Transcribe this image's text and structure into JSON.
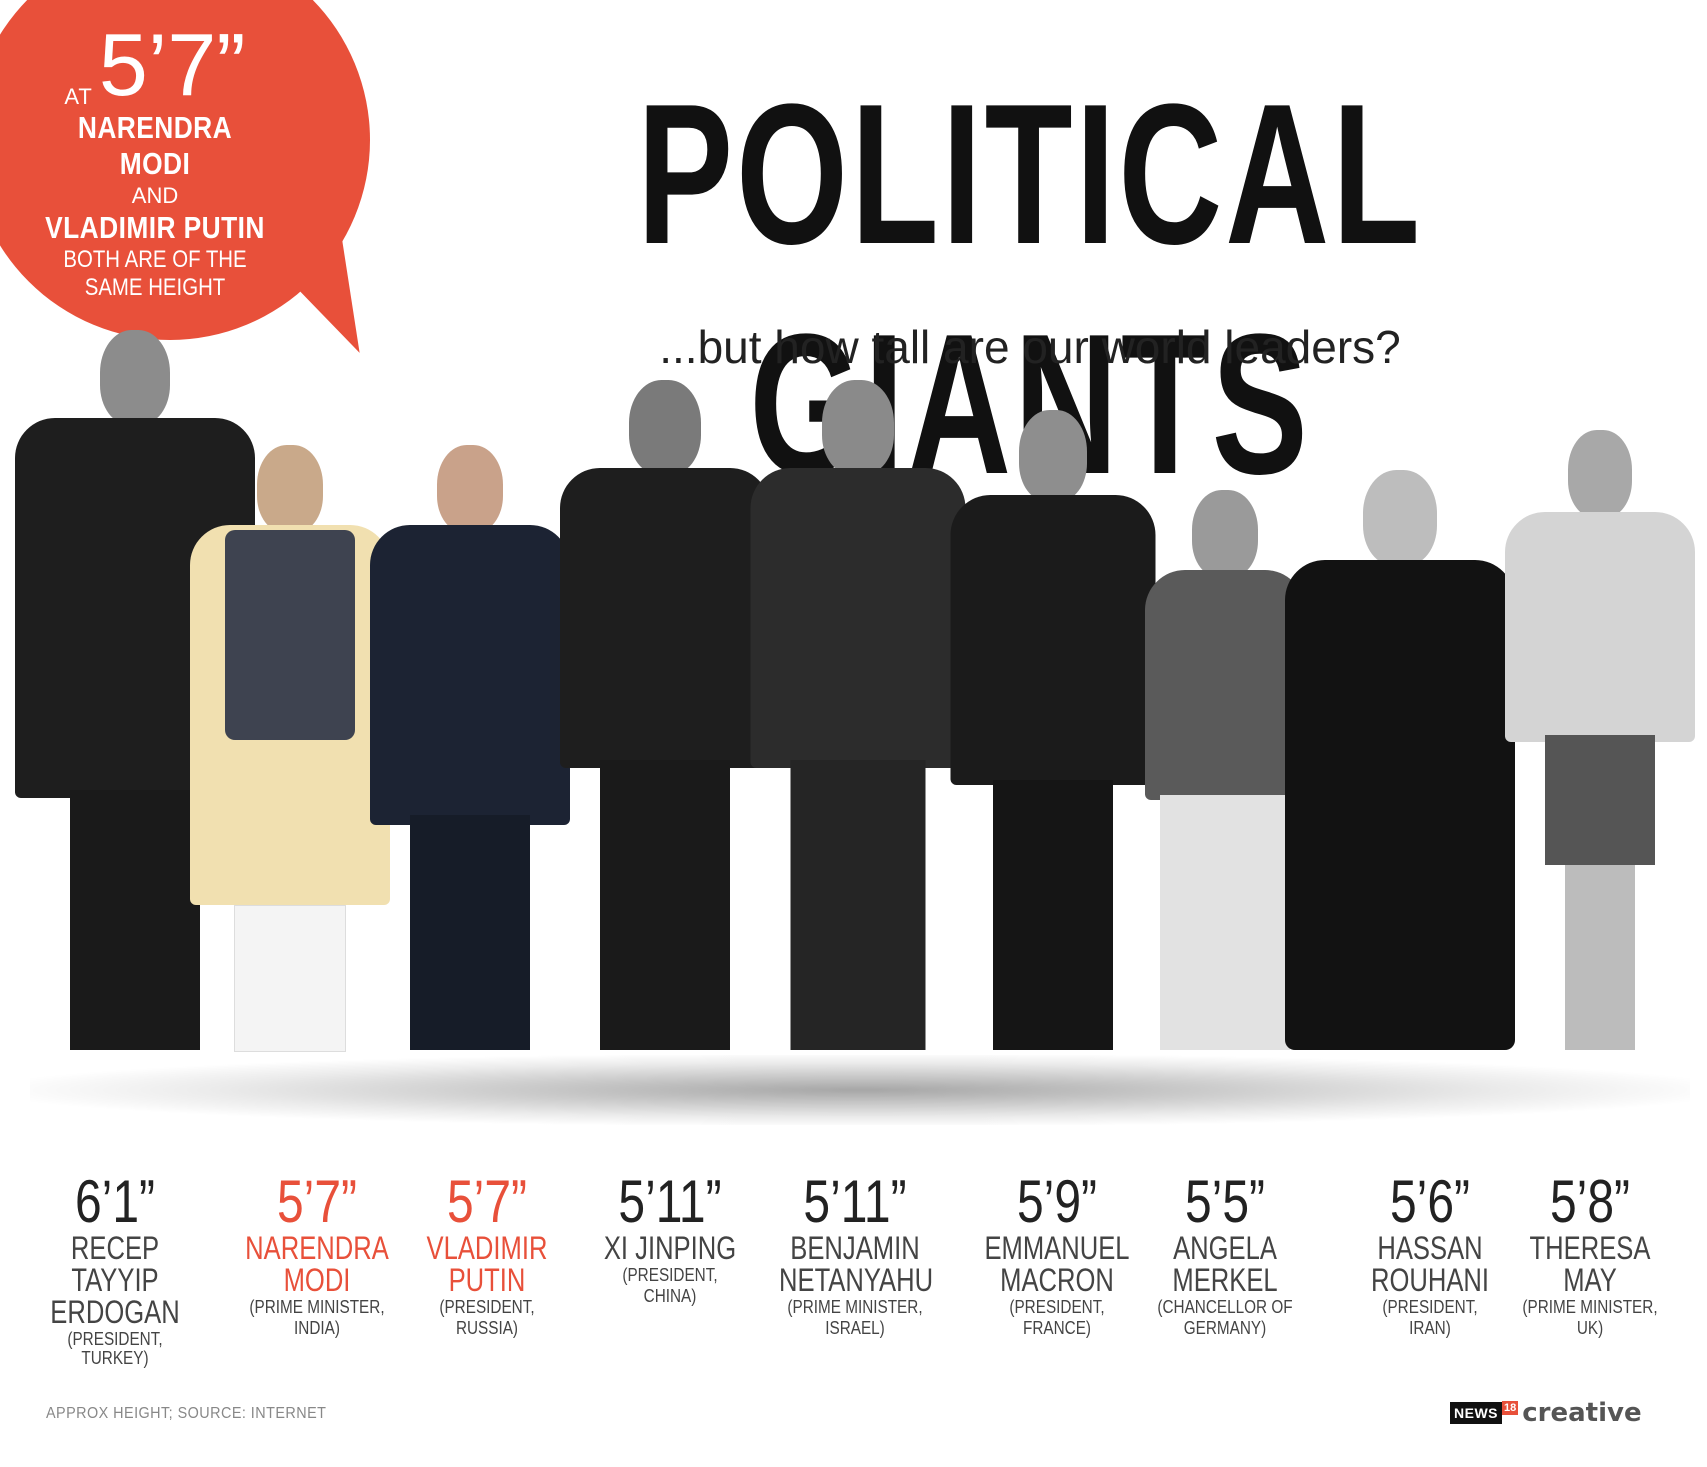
{
  "callout": {
    "at": "AT",
    "height": "5’7”",
    "name1": "NARENDRA MODI",
    "and": "AND",
    "name2": "VLADIMIR PUTIN",
    "line1": "BOTH ARE OF THE",
    "line2": "SAME HEIGHT"
  },
  "title": "POLITICAL GIANTS",
  "subtitle": "...but how tall are our world leaders?",
  "leaders": [
    {
      "height": "6’1”",
      "name1": "RECEP TAYYIP",
      "name2": "ERDOGAN",
      "role1": "(PRESIDENT, TURKEY)",
      "role2": ""
    },
    {
      "height": "5’7”",
      "name1": "NARENDRA",
      "name2": "MODI",
      "role1": "(PRIME MINISTER,",
      "role2": "INDIA)"
    },
    {
      "height": "5’7”",
      "name1": "VLADIMIR",
      "name2": "PUTIN",
      "role1": "(PRESIDENT,",
      "role2": "RUSSIA)"
    },
    {
      "height": "5’11”",
      "name1": "XI JINPING",
      "name2": "",
      "role1": "(PRESIDENT,",
      "role2": "CHINA)"
    },
    {
      "height": "5’11”",
      "name1": "BENJAMIN",
      "name2": "NETANYAHU",
      "role1": "(PRIME MINISTER,",
      "role2": "ISRAEL)"
    },
    {
      "height": "5’9”",
      "name1": "EMMANUEL",
      "name2": "MACRON",
      "role1": "(PRESIDENT,",
      "role2": "FRANCE)"
    },
    {
      "height": "5’5”",
      "name1": "ANGELA",
      "name2": "MERKEL",
      "role1": "(CHANCELLOR OF",
      "role2": "GERMANY)"
    },
    {
      "height": "5’6”",
      "name1": "HASSAN",
      "name2": "ROUHANI",
      "role1": "(PRESIDENT,",
      "role2": "IRAN)"
    },
    {
      "height": "5’8”",
      "name1": "THERESA",
      "name2": "MAY",
      "role1": "(PRIME MINISTER,",
      "role2": "UK)"
    }
  ],
  "footnote": "APPROX HEIGHT; SOURCE: INTERNET",
  "logo": {
    "news": "NEWS",
    "num": "18",
    "creative": "creative"
  },
  "colors": {
    "accent": "#e8503a"
  }
}
